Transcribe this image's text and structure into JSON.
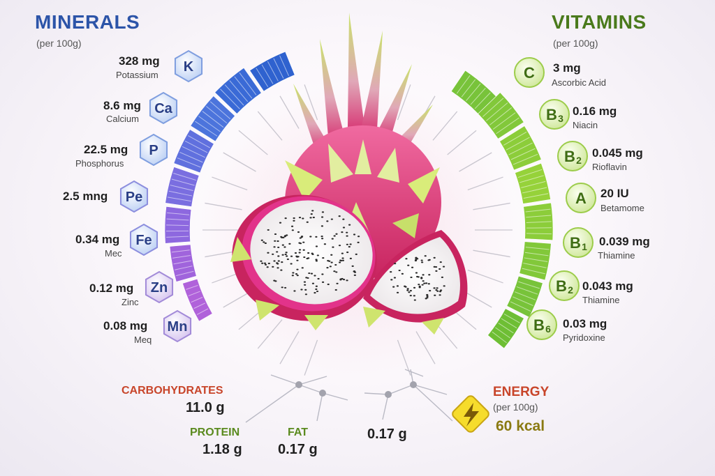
{
  "minerals": {
    "title": "MINERALS",
    "subtitle": "(per 100g)",
    "items": [
      {
        "value": "328 mg",
        "name": "Potassium",
        "symbol": "K"
      },
      {
        "value": "8.6 mg",
        "name": "Calcium",
        "symbol": "Ca"
      },
      {
        "value": "22.5 mg",
        "name": "Phosphorus",
        "symbol": "P"
      },
      {
        "value": "2.5 mng",
        "name": "",
        "symbol": "Pe"
      },
      {
        "value": "0.34 mg",
        "name": "Mec",
        "symbol": "Fe"
      },
      {
        "value": "0.12 mg",
        "name": "Zinc",
        "symbol": "Zn"
      },
      {
        "value": "0.08 mg",
        "name": "Meq",
        "symbol": "Mn"
      }
    ]
  },
  "vitamins": {
    "title": "VITAMINS",
    "subtitle": "(per 100g)",
    "items": [
      {
        "value": "3 mg",
        "name": "Ascorbic Acid",
        "symbol": "C",
        "sub": ""
      },
      {
        "value": "0.16 mg",
        "name": "Niacin",
        "symbol": "B",
        "sub": "3"
      },
      {
        "value": "0.045 mg",
        "name": "Rioflavin",
        "symbol": "B",
        "sub": "2"
      },
      {
        "value": "20 IU",
        "name": "Betamome",
        "symbol": "A",
        "sub": ""
      },
      {
        "value": "0.039 mg",
        "name": "Thiamine",
        "symbol": "B",
        "sub": "1"
      },
      {
        "value": "0.043 mg",
        "name": "Thiamine",
        "symbol": "B",
        "sub": "2"
      },
      {
        "value": "0.03 mg",
        "name": "Pyridoxine",
        "symbol": "B",
        "sub": "6"
      }
    ]
  },
  "nutrients": {
    "carbohydrates": {
      "label": "CARBOHYDRATES",
      "value": "11.0 g"
    },
    "protein": {
      "label": "PROTEIN",
      "value": "1.18 g"
    },
    "fat": {
      "label": "FAT",
      "value": "0.17 g"
    },
    "extra_value": "0.17 g"
  },
  "energy": {
    "label": "ENERGY",
    "subtitle": "(per 100g)",
    "value": "60 kcal"
  },
  "colors": {
    "minerals_title": "#2c54a8",
    "vitamins_title": "#4a7a1c",
    "carbohydrates": "#c8452a",
    "protein": "#5a8a1e",
    "fat": "#5a8a1e",
    "energy": "#c8452a",
    "energy_value": "#8a7a12",
    "energy_badge": "#f6dc2c"
  },
  "icons": {
    "energy": "lightning-bolt-icon"
  }
}
